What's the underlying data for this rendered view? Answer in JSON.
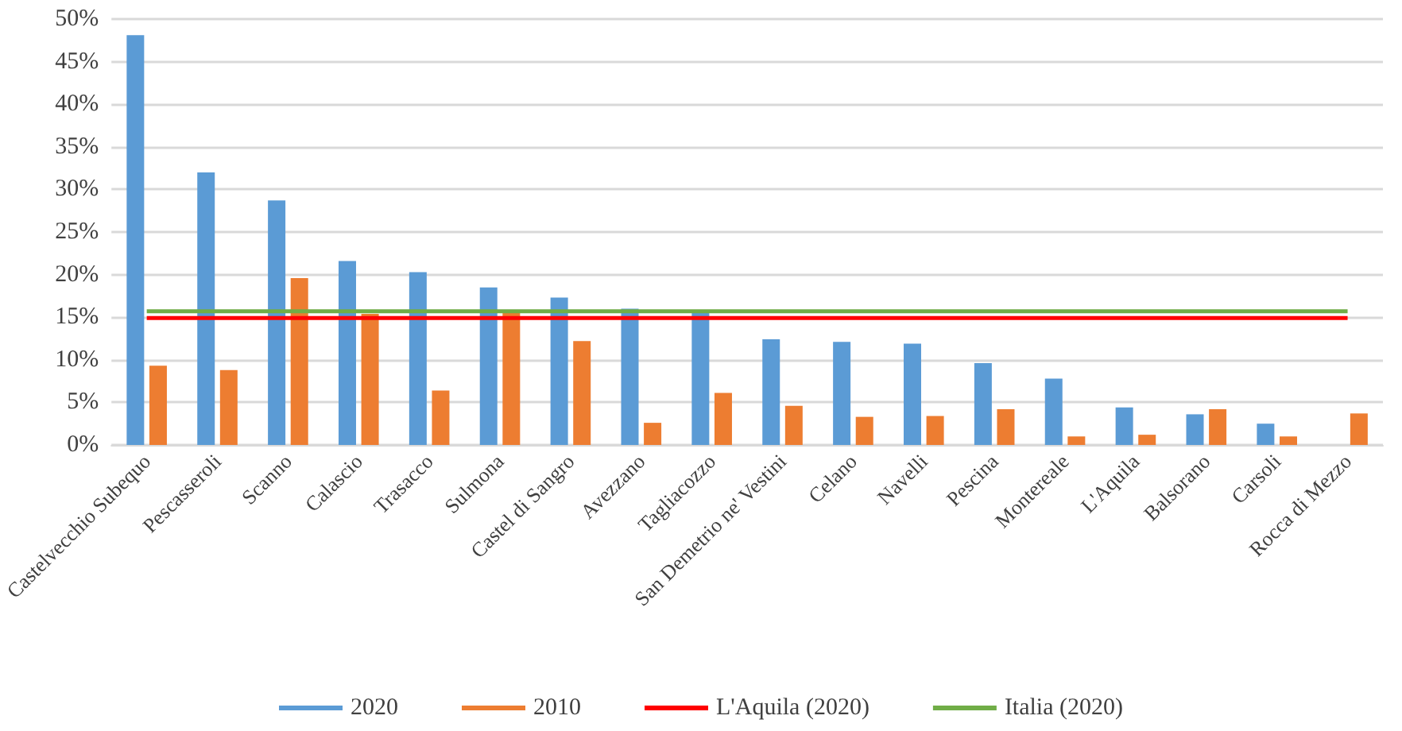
{
  "chart_data": {
    "type": "bar",
    "categories": [
      "Castelvecchio Subequo",
      "Pescasseroli",
      "Scanno",
      "Calascio",
      "Trasacco",
      "Sulmona",
      "Castel di Sangro",
      "Avezzano",
      "Tagliacozzo",
      "San Demetrio ne' Vestini",
      "Celano",
      "Navelli",
      "Pescina",
      "Montereale",
      "L'Aquila",
      "Balsorano",
      "Carsoli",
      "Rocca di Mezzo"
    ],
    "series": [
      {
        "name": "2020",
        "color": "#5b9bd5",
        "values": [
          48.1,
          32.0,
          28.7,
          21.6,
          20.3,
          18.5,
          17.3,
          16.0,
          15.6,
          12.4,
          12.1,
          11.9,
          9.6,
          7.8,
          4.4,
          3.6,
          2.5,
          null
        ]
      },
      {
        "name": "2010",
        "color": "#ed7d31",
        "values": [
          9.3,
          8.8,
          19.6,
          15.4,
          6.4,
          15.7,
          12.2,
          2.6,
          6.1,
          4.6,
          3.3,
          3.4,
          4.2,
          1.0,
          1.2,
          4.2,
          1.0,
          3.7
        ]
      },
      {
        "name": "L'Aquila (2020)",
        "type": "line",
        "color": "#ff0000",
        "values": [
          14.9,
          14.9,
          14.9,
          14.9,
          14.9,
          14.9,
          14.9,
          14.9,
          14.9,
          14.9,
          14.9,
          14.9,
          14.9,
          14.9,
          14.9,
          14.9,
          14.9,
          14.9
        ]
      },
      {
        "name": "Italia (2020)",
        "type": "line",
        "color": "#70ad47",
        "values": [
          15.7,
          15.7,
          15.7,
          15.7,
          15.7,
          15.7,
          15.7,
          15.7,
          15.7,
          15.7,
          15.7,
          15.7,
          15.7,
          15.7,
          15.7,
          15.7,
          15.7,
          15.7
        ]
      }
    ],
    "ylim": [
      0,
      50
    ],
    "yticks": [
      {
        "value": 0,
        "label": "0%"
      },
      {
        "value": 5,
        "label": "5%"
      },
      {
        "value": 10,
        "label": "10%"
      },
      {
        "value": 15,
        "label": "15%"
      },
      {
        "value": 20,
        "label": "20%"
      },
      {
        "value": 25,
        "label": "25%"
      },
      {
        "value": 30,
        "label": "30%"
      },
      {
        "value": 35,
        "label": "35%"
      },
      {
        "value": 40,
        "label": "40%"
      },
      {
        "value": 45,
        "label": "45%"
      },
      {
        "value": 50,
        "label": "50%"
      }
    ],
    "grid": "y",
    "legend": "bottom",
    "marker": "none"
  }
}
